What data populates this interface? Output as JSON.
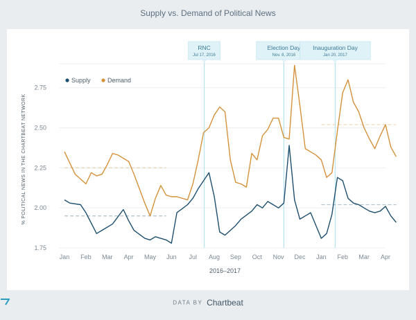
{
  "chart_data": {
    "type": "line",
    "title": "Supply vs. Demand of Political News",
    "xlabel": "2016–2017",
    "ylabel": "% POLITICAL NEWS IN THE CHARTBEAT NETWORK",
    "ylim": [
      1.75,
      2.9
    ],
    "yticks": [
      1.75,
      2.0,
      2.25,
      2.5,
      2.75
    ],
    "ytick_labels": [
      "1.75",
      "2.00",
      "2.25",
      "2.50",
      "2.75"
    ],
    "month_labels": [
      "Jan",
      "Feb",
      "Mar",
      "Apr",
      "May",
      "Jun",
      "Jul",
      "Aug",
      "Sep",
      "Oct",
      "Nov",
      "Dec",
      "Jan",
      "Feb",
      "Mar",
      "Apr"
    ],
    "legend_position": "top-left",
    "series": [
      {
        "name": "Supply",
        "color": "#1d4e6e",
        "x": [
          0,
          0.25,
          0.75,
          1.0,
          1.5,
          1.75,
          2.25,
          2.75,
          3.0,
          3.25,
          3.75,
          4.0,
          4.25,
          4.75,
          5.0,
          5.25,
          5.75,
          6.0,
          6.25,
          6.75,
          7.0,
          7.25,
          7.5,
          7.75,
          8.0,
          8.25,
          8.75,
          9.0,
          9.25,
          9.5,
          9.75,
          10.0,
          10.25,
          10.5,
          10.75,
          11.0,
          11.25,
          11.5,
          12.0,
          12.25,
          12.5,
          12.75,
          13.0,
          13.25,
          13.5,
          13.75,
          14.0,
          14.25,
          14.5,
          14.75,
          15.0,
          15.25,
          15.5
        ],
        "values": [
          2.05,
          2.03,
          2.02,
          1.97,
          1.84,
          1.86,
          1.9,
          1.99,
          1.92,
          1.86,
          1.81,
          1.8,
          1.82,
          1.8,
          1.78,
          1.97,
          2.02,
          2.06,
          2.12,
          2.22,
          2.07,
          1.85,
          1.83,
          1.86,
          1.89,
          1.93,
          1.98,
          2.02,
          2.0,
          2.04,
          2.02,
          2.0,
          2.03,
          2.39,
          2.05,
          1.93,
          1.95,
          1.97,
          1.81,
          1.84,
          1.96,
          2.19,
          2.17,
          2.06,
          2.03,
          2.02,
          2.0,
          1.98,
          1.97,
          1.98,
          2.01,
          1.95,
          1.91
        ]
      },
      {
        "name": "Demand",
        "color": "#d4913a",
        "x": [
          0,
          0.5,
          0.75,
          1.0,
          1.25,
          1.5,
          1.75,
          2.0,
          2.25,
          2.5,
          2.75,
          3.0,
          3.25,
          3.75,
          4.0,
          4.25,
          4.5,
          4.75,
          5.0,
          5.25,
          5.75,
          6.0,
          6.25,
          6.5,
          6.75,
          7.0,
          7.25,
          7.5,
          7.75,
          8.0,
          8.25,
          8.5,
          8.75,
          9.0,
          9.25,
          9.5,
          9.75,
          10.0,
          10.25,
          10.5,
          10.75,
          11.0,
          11.25,
          11.5,
          11.75,
          12.0,
          12.25,
          12.5,
          12.75,
          13.0,
          13.25,
          13.5,
          13.75,
          14.0,
          14.25,
          14.5,
          14.75,
          15.0,
          15.25,
          15.5
        ],
        "values": [
          2.35,
          2.21,
          2.18,
          2.15,
          2.22,
          2.2,
          2.21,
          2.27,
          2.34,
          2.33,
          2.31,
          2.29,
          2.21,
          2.03,
          1.95,
          2.06,
          2.14,
          2.08,
          2.07,
          2.07,
          2.05,
          2.15,
          2.3,
          2.47,
          2.5,
          2.58,
          2.63,
          2.6,
          2.3,
          2.16,
          2.15,
          2.13,
          2.34,
          2.3,
          2.45,
          2.49,
          2.56,
          2.56,
          2.44,
          2.43,
          2.89,
          2.64,
          2.37,
          2.35,
          2.33,
          2.3,
          2.19,
          2.22,
          2.48,
          2.72,
          2.8,
          2.66,
          2.6,
          2.5,
          2.43,
          2.37,
          2.45,
          2.52,
          2.38,
          2.32
        ]
      }
    ],
    "events": [
      {
        "label": "RNC",
        "date": "Jul 17, 2016",
        "x": 6.53
      },
      {
        "label": "Election Day",
        "date": "Nov. 8, 2016",
        "x": 10.25
      },
      {
        "label": "Inauguration Day",
        "date": "Jan 20, 2017",
        "x": 12.65
      }
    ],
    "reference_lines": [
      {
        "series": "Demand",
        "value": 2.25,
        "x": [
          0,
          4.75
        ]
      },
      {
        "series": "Supply",
        "value": 1.95,
        "x": [
          0,
          4.75
        ]
      },
      {
        "series": "Demand",
        "value": 2.52,
        "x": [
          12.0,
          15.5
        ]
      },
      {
        "series": "Supply",
        "value": 2.02,
        "x": [
          12.0,
          15.5
        ]
      }
    ],
    "colors": {
      "supply": "#1d4e6e",
      "demand": "#d4913a",
      "event_line": "#b8e4ef",
      "event_box": "#dff2f8",
      "event_text": "#3c7a96",
      "gridline": "#eceff2",
      "tick_text": "#7b8894"
    }
  },
  "footer": {
    "data_by": "DATA BY",
    "brand": "Chartbeat"
  }
}
